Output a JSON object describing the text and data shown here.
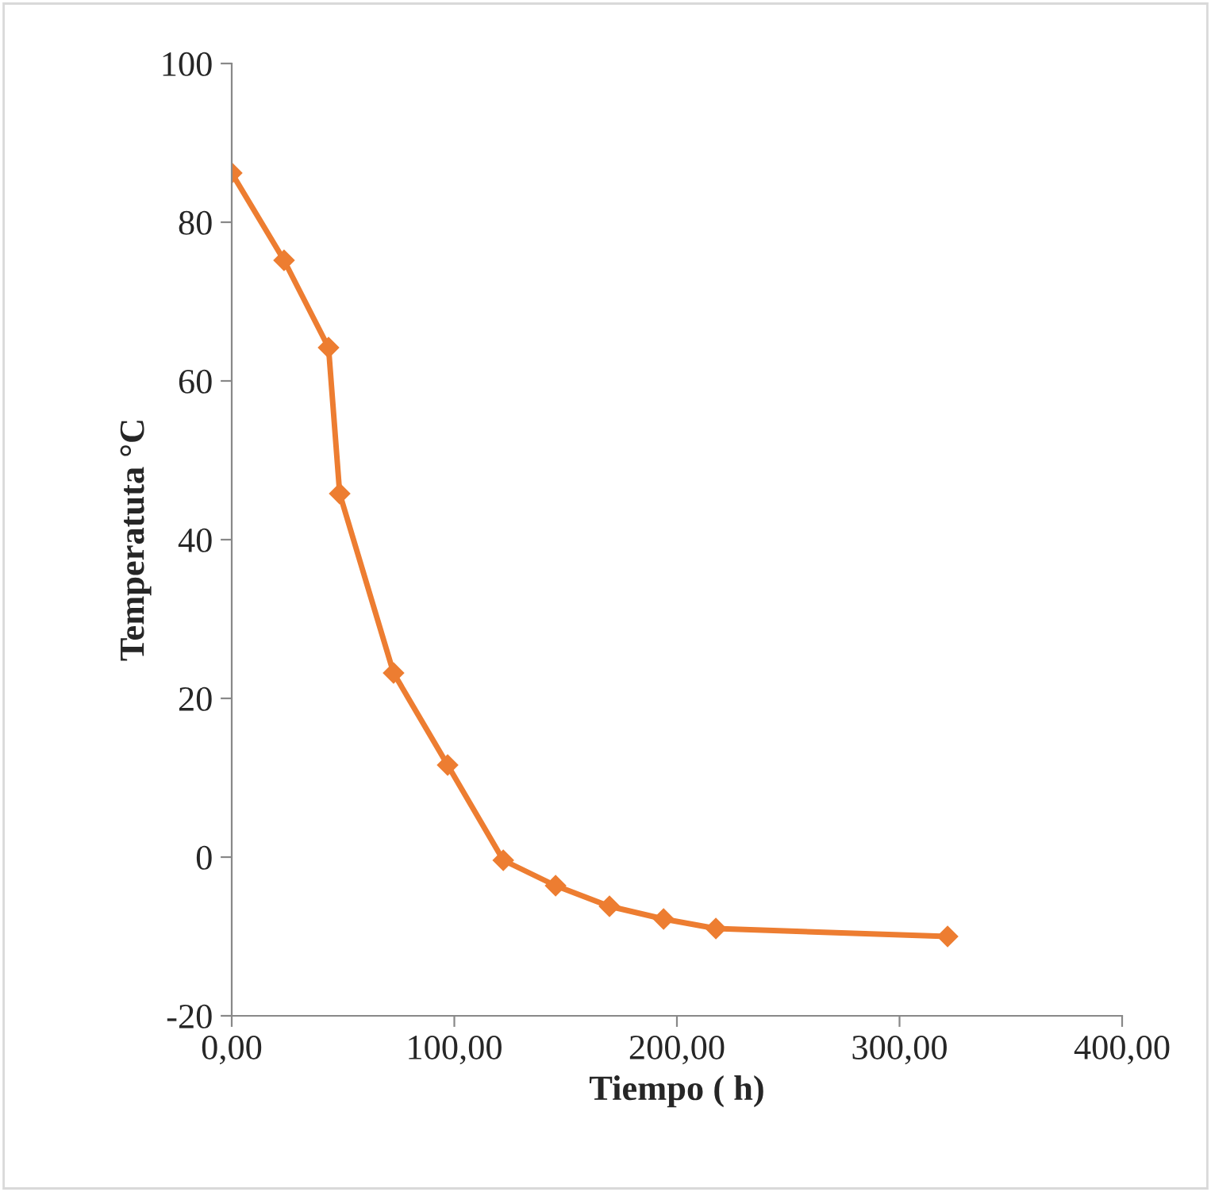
{
  "chart_data": {
    "type": "line",
    "xlabel": "Tiempo ( h)",
    "ylabel": "Temperatuta °C",
    "x": [
      0,
      23.5,
      43.5,
      48.5,
      72.7,
      97,
      122,
      145.5,
      169.7,
      194,
      217.5,
      321.6
    ],
    "series": [
      {
        "color": "#ed7d31",
        "values": [
          86.2,
          75.2,
          64.2,
          45.8,
          23.2,
          11.6,
          -0.4,
          -3.6,
          -6.2,
          -7.8,
          -9,
          -10
        ]
      }
    ],
    "xlim": [
      0,
      400
    ],
    "xticks": [
      {
        "value": 0,
        "label": "0,00"
      },
      {
        "value": 100,
        "label": "100,00"
      },
      {
        "value": 200,
        "label": "200,00"
      },
      {
        "value": 300,
        "label": "300,00"
      },
      {
        "value": 400,
        "label": "400,00"
      }
    ],
    "ylim": [
      -20,
      100
    ],
    "yticks": [
      -20,
      0,
      20,
      40,
      60,
      80,
      100
    ],
    "grid": false,
    "marker": "diamond",
    "line_style": "solid"
  }
}
